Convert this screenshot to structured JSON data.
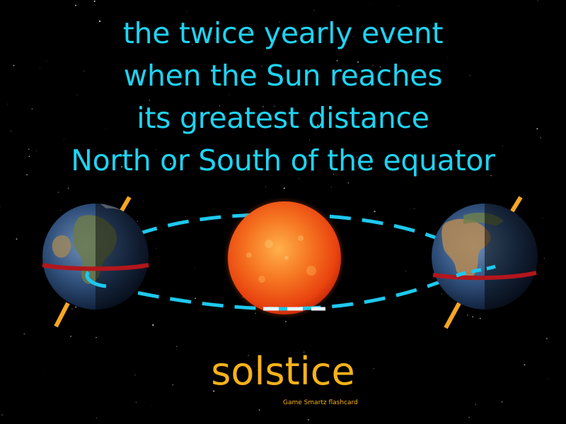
{
  "definition": {
    "lines": [
      "the twice yearly event",
      "when the Sun reaches",
      "its greatest distance",
      "North or South of the equator"
    ]
  },
  "term": "solstice",
  "credit": "Game Smartz  flashcard",
  "colors": {
    "background": "#000000",
    "definition_text": "#1fd3f2",
    "term_text": "#f6b21a",
    "orbit": "#1ec8ee",
    "axis": "#f5a623",
    "equator": "#b3161c",
    "sun": "#f35a16"
  },
  "icons": [
    "sun-icon",
    "earth-icon",
    "orbit-path",
    "axis-line",
    "equator-line"
  ]
}
